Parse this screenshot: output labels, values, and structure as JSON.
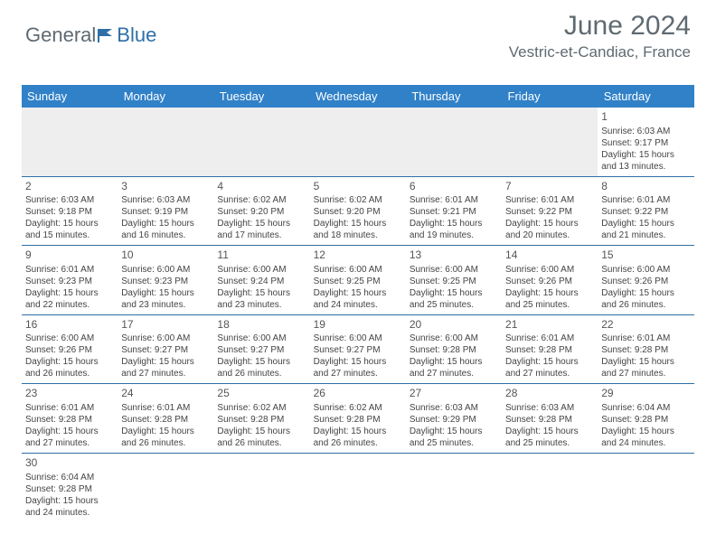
{
  "brand": {
    "word1": "General",
    "word2": "Blue"
  },
  "title": "June 2024",
  "location": "Vestric-et-Candiac, France",
  "colors": {
    "header_bg": "#3081c8",
    "header_text": "#ffffff",
    "rule": "#2f6fa8",
    "empty_bg": "#eeeeee",
    "title_color": "#5f6a72",
    "body_text": "#444444",
    "page_bg": "#ffffff"
  },
  "typography": {
    "title_fontsize_pt": 22,
    "location_fontsize_pt": 13,
    "dayheader_fontsize_pt": 10,
    "cell_fontsize_pt": 7.5
  },
  "day_headers": [
    "Sunday",
    "Monday",
    "Tuesday",
    "Wednesday",
    "Thursday",
    "Friday",
    "Saturday"
  ],
  "leading_blanks": 6,
  "days": [
    {
      "n": "1",
      "sunrise": "Sunrise: 6:03 AM",
      "sunset": "Sunset: 9:17 PM",
      "d1": "Daylight: 15 hours",
      "d2": "and 13 minutes."
    },
    {
      "n": "2",
      "sunrise": "Sunrise: 6:03 AM",
      "sunset": "Sunset: 9:18 PM",
      "d1": "Daylight: 15 hours",
      "d2": "and 15 minutes."
    },
    {
      "n": "3",
      "sunrise": "Sunrise: 6:03 AM",
      "sunset": "Sunset: 9:19 PM",
      "d1": "Daylight: 15 hours",
      "d2": "and 16 minutes."
    },
    {
      "n": "4",
      "sunrise": "Sunrise: 6:02 AM",
      "sunset": "Sunset: 9:20 PM",
      "d1": "Daylight: 15 hours",
      "d2": "and 17 minutes."
    },
    {
      "n": "5",
      "sunrise": "Sunrise: 6:02 AM",
      "sunset": "Sunset: 9:20 PM",
      "d1": "Daylight: 15 hours",
      "d2": "and 18 minutes."
    },
    {
      "n": "6",
      "sunrise": "Sunrise: 6:01 AM",
      "sunset": "Sunset: 9:21 PM",
      "d1": "Daylight: 15 hours",
      "d2": "and 19 minutes."
    },
    {
      "n": "7",
      "sunrise": "Sunrise: 6:01 AM",
      "sunset": "Sunset: 9:22 PM",
      "d1": "Daylight: 15 hours",
      "d2": "and 20 minutes."
    },
    {
      "n": "8",
      "sunrise": "Sunrise: 6:01 AM",
      "sunset": "Sunset: 9:22 PM",
      "d1": "Daylight: 15 hours",
      "d2": "and 21 minutes."
    },
    {
      "n": "9",
      "sunrise": "Sunrise: 6:01 AM",
      "sunset": "Sunset: 9:23 PM",
      "d1": "Daylight: 15 hours",
      "d2": "and 22 minutes."
    },
    {
      "n": "10",
      "sunrise": "Sunrise: 6:00 AM",
      "sunset": "Sunset: 9:23 PM",
      "d1": "Daylight: 15 hours",
      "d2": "and 23 minutes."
    },
    {
      "n": "11",
      "sunrise": "Sunrise: 6:00 AM",
      "sunset": "Sunset: 9:24 PM",
      "d1": "Daylight: 15 hours",
      "d2": "and 23 minutes."
    },
    {
      "n": "12",
      "sunrise": "Sunrise: 6:00 AM",
      "sunset": "Sunset: 9:25 PM",
      "d1": "Daylight: 15 hours",
      "d2": "and 24 minutes."
    },
    {
      "n": "13",
      "sunrise": "Sunrise: 6:00 AM",
      "sunset": "Sunset: 9:25 PM",
      "d1": "Daylight: 15 hours",
      "d2": "and 25 minutes."
    },
    {
      "n": "14",
      "sunrise": "Sunrise: 6:00 AM",
      "sunset": "Sunset: 9:26 PM",
      "d1": "Daylight: 15 hours",
      "d2": "and 25 minutes."
    },
    {
      "n": "15",
      "sunrise": "Sunrise: 6:00 AM",
      "sunset": "Sunset: 9:26 PM",
      "d1": "Daylight: 15 hours",
      "d2": "and 26 minutes."
    },
    {
      "n": "16",
      "sunrise": "Sunrise: 6:00 AM",
      "sunset": "Sunset: 9:26 PM",
      "d1": "Daylight: 15 hours",
      "d2": "and 26 minutes."
    },
    {
      "n": "17",
      "sunrise": "Sunrise: 6:00 AM",
      "sunset": "Sunset: 9:27 PM",
      "d1": "Daylight: 15 hours",
      "d2": "and 27 minutes."
    },
    {
      "n": "18",
      "sunrise": "Sunrise: 6:00 AM",
      "sunset": "Sunset: 9:27 PM",
      "d1": "Daylight: 15 hours",
      "d2": "and 26 minutes."
    },
    {
      "n": "19",
      "sunrise": "Sunrise: 6:00 AM",
      "sunset": "Sunset: 9:27 PM",
      "d1": "Daylight: 15 hours",
      "d2": "and 27 minutes."
    },
    {
      "n": "20",
      "sunrise": "Sunrise: 6:00 AM",
      "sunset": "Sunset: 9:28 PM",
      "d1": "Daylight: 15 hours",
      "d2": "and 27 minutes."
    },
    {
      "n": "21",
      "sunrise": "Sunrise: 6:01 AM",
      "sunset": "Sunset: 9:28 PM",
      "d1": "Daylight: 15 hours",
      "d2": "and 27 minutes."
    },
    {
      "n": "22",
      "sunrise": "Sunrise: 6:01 AM",
      "sunset": "Sunset: 9:28 PM",
      "d1": "Daylight: 15 hours",
      "d2": "and 27 minutes."
    },
    {
      "n": "23",
      "sunrise": "Sunrise: 6:01 AM",
      "sunset": "Sunset: 9:28 PM",
      "d1": "Daylight: 15 hours",
      "d2": "and 27 minutes."
    },
    {
      "n": "24",
      "sunrise": "Sunrise: 6:01 AM",
      "sunset": "Sunset: 9:28 PM",
      "d1": "Daylight: 15 hours",
      "d2": "and 26 minutes."
    },
    {
      "n": "25",
      "sunrise": "Sunrise: 6:02 AM",
      "sunset": "Sunset: 9:28 PM",
      "d1": "Daylight: 15 hours",
      "d2": "and 26 minutes."
    },
    {
      "n": "26",
      "sunrise": "Sunrise: 6:02 AM",
      "sunset": "Sunset: 9:28 PM",
      "d1": "Daylight: 15 hours",
      "d2": "and 26 minutes."
    },
    {
      "n": "27",
      "sunrise": "Sunrise: 6:03 AM",
      "sunset": "Sunset: 9:29 PM",
      "d1": "Daylight: 15 hours",
      "d2": "and 25 minutes."
    },
    {
      "n": "28",
      "sunrise": "Sunrise: 6:03 AM",
      "sunset": "Sunset: 9:28 PM",
      "d1": "Daylight: 15 hours",
      "d2": "and 25 minutes."
    },
    {
      "n": "29",
      "sunrise": "Sunrise: 6:04 AM",
      "sunset": "Sunset: 9:28 PM",
      "d1": "Daylight: 15 hours",
      "d2": "and 24 minutes."
    },
    {
      "n": "30",
      "sunrise": "Sunrise: 6:04 AM",
      "sunset": "Sunset: 9:28 PM",
      "d1": "Daylight: 15 hours",
      "d2": "and 24 minutes."
    }
  ]
}
